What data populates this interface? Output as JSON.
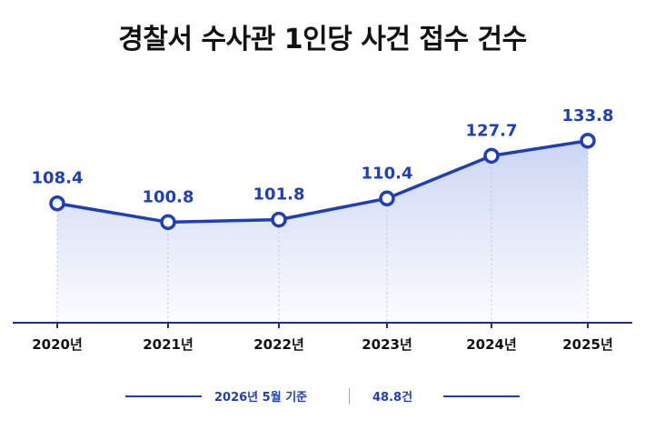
{
  "title": "경찰서 수사관 1인당 사건 접수 건수",
  "chart_data": {
    "type": "area",
    "categories": [
      "2020년",
      "2021년",
      "2022년",
      "2023년",
      "2024년",
      "2025년"
    ],
    "series": [
      {
        "values": [
          108.4,
          100.8,
          101.8,
          110.4,
          127.7,
          133.8
        ]
      }
    ],
    "data_labels": [
      "108.4",
      "100.8",
      "101.8",
      "110.4",
      "127.7",
      "133.8"
    ],
    "ylim": [
      60,
      140
    ],
    "grid": false,
    "legend": "none",
    "colors": {
      "line": "#1f3fb8",
      "fill": "#c9d4f3",
      "axis": "#1a2f8a",
      "marker_fill": "#ffffff",
      "label": "#1f3fb8"
    }
  },
  "footer": {
    "note": "2026년 5월 기준",
    "value": "48.8건"
  }
}
